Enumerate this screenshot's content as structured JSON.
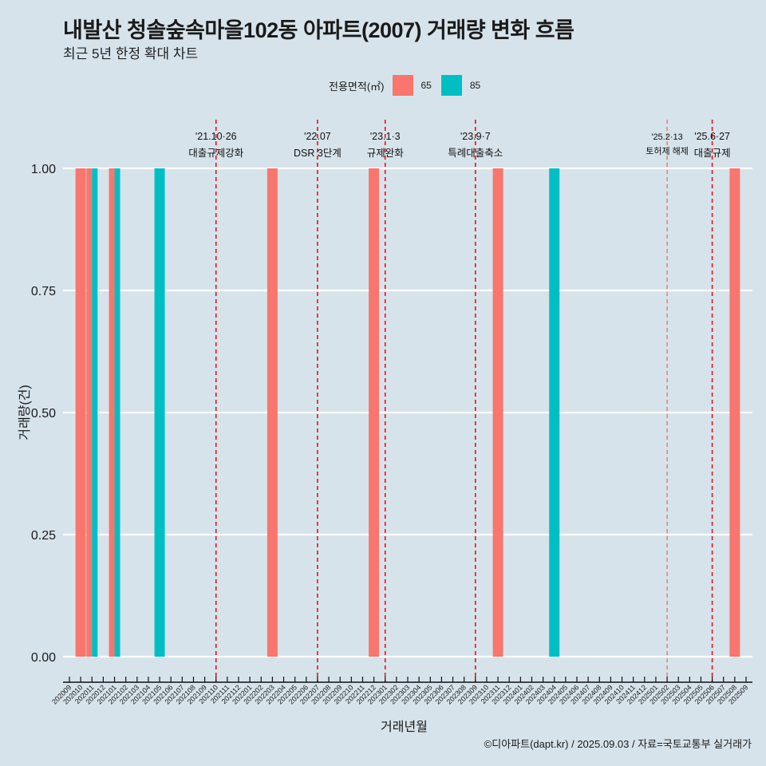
{
  "title": "내발산 청솔숲속마을102동 아파트(2007) 거래량 변화 흐름",
  "subtitle": "최근 5년 한정 확대 차트",
  "legend": {
    "title": "전용면적(㎡)",
    "items": [
      {
        "label": "65",
        "color": "#f8766d"
      },
      {
        "label": "85",
        "color": "#00bfc4"
      }
    ]
  },
  "caption": "©디아파트(dapt.kr) / 2025.09.03 / 자료=국토교통부 실거래가",
  "chart_data": {
    "type": "bar",
    "title": "내발산 청솔숲속마을102동 아파트(2007) 거래량 변화 흐름",
    "subtitle": "최근 5년 한정 확대 차트",
    "xlabel": "거래년월",
    "ylabel": "거래량(건)",
    "ylim": [
      0,
      1
    ],
    "yticks": [
      "0.00",
      "0.25",
      "0.50",
      "0.75",
      "1.00"
    ],
    "ytick_values": [
      0,
      0.25,
      0.5,
      0.75,
      1.0
    ],
    "grid": true,
    "legend_position": "top",
    "categories": [
      "202009",
      "202010",
      "202011",
      "202012",
      "202101",
      "202102",
      "202103",
      "202104",
      "202105",
      "202106",
      "202107",
      "202108",
      "202109",
      "202110",
      "202111",
      "202112",
      "202201",
      "202202",
      "202203",
      "202204",
      "202205",
      "202206",
      "202207",
      "202208",
      "202209",
      "202210",
      "202211",
      "202212",
      "202301",
      "202302",
      "202303",
      "202304",
      "202305",
      "202306",
      "202307",
      "202308",
      "202309",
      "202310",
      "202311",
      "202312",
      "202401",
      "202402",
      "202403",
      "202404",
      "202405",
      "202406",
      "202407",
      "202408",
      "202409",
      "202410",
      "202411",
      "202412",
      "202501",
      "202502",
      "202503",
      "202504",
      "202505",
      "202506",
      "202507",
      "202508",
      "202509"
    ],
    "bars": [
      {
        "month": "202010",
        "series": "65",
        "value": 1
      },
      {
        "month": "202011",
        "series": "65",
        "value": 1
      },
      {
        "month": "202011",
        "series": "85",
        "value": 1
      },
      {
        "month": "202101",
        "series": "65",
        "value": 1
      },
      {
        "month": "202101",
        "series": "85",
        "value": 1
      },
      {
        "month": "202105",
        "series": "85",
        "value": 1
      },
      {
        "month": "202203",
        "series": "65",
        "value": 1
      },
      {
        "month": "202212",
        "series": "65",
        "value": 1
      },
      {
        "month": "202311",
        "series": "65",
        "value": 1
      },
      {
        "month": "202404",
        "series": "85",
        "value": 1
      },
      {
        "month": "202508",
        "series": "65",
        "value": 1
      }
    ],
    "series_colors": {
      "65": "#f8766d",
      "85": "#00bfc4"
    },
    "annotations": [
      {
        "month": "202110",
        "date": "'21.10·26",
        "text": "대출규제강화",
        "style": "strong"
      },
      {
        "month": "202207",
        "date": "'22.07",
        "text": "DSR 3단계",
        "style": "strong"
      },
      {
        "month": "202301",
        "date": "'23.1·3",
        "text": "규제완화",
        "style": "strong"
      },
      {
        "month": "202309",
        "date": "'23.9·7",
        "text": "특례대출축소",
        "style": "strong"
      },
      {
        "month": "202502",
        "date": "'25.2·13",
        "text": "토허제 해제",
        "style": "light"
      },
      {
        "month": "202506",
        "date": "'25.6·27",
        "text": "대출규제",
        "style": "strong"
      }
    ]
  }
}
